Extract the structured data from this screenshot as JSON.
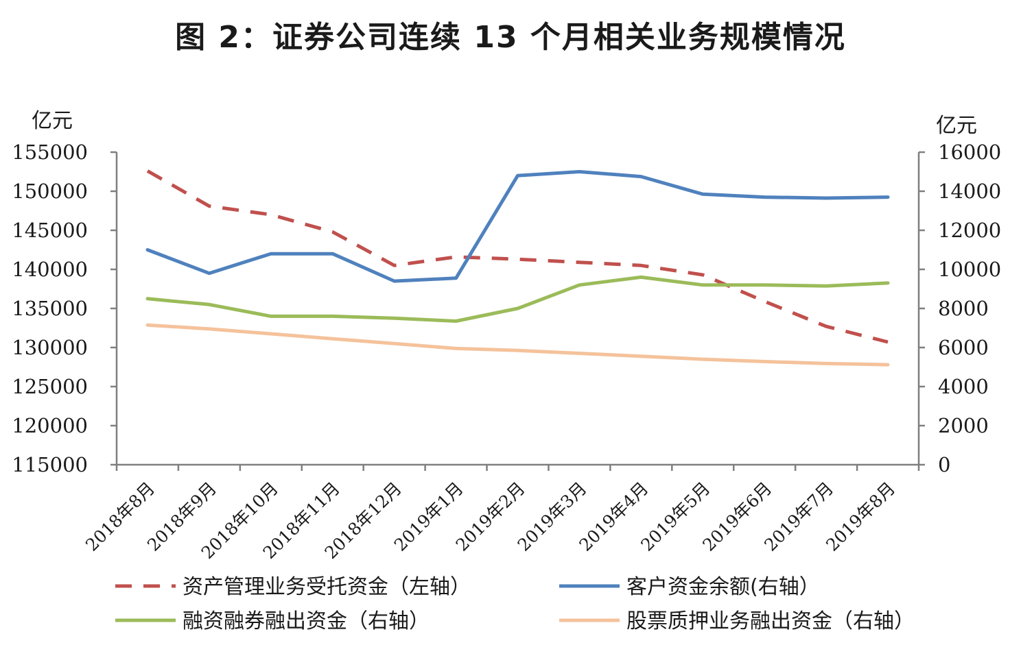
{
  "chart_data": {
    "type": "line",
    "title": "图 2：证券公司连续 13 个月相关业务规模情况",
    "left_axis": {
      "unit": "亿元",
      "ylim": [
        115000,
        155000
      ],
      "ticks": [
        115000,
        120000,
        125000,
        130000,
        135000,
        140000,
        145000,
        150000,
        155000
      ]
    },
    "right_axis": {
      "unit": "亿元",
      "ylim": [
        0,
        16000
      ],
      "ticks": [
        0,
        2000,
        4000,
        6000,
        8000,
        10000,
        12000,
        14000,
        16000
      ]
    },
    "categories": [
      "2018年8月",
      "2018年9月",
      "2018年10月",
      "2018年11月",
      "2018年12月",
      "2019年1月",
      "2019年2月",
      "2019年3月",
      "2019年4月",
      "2019年5月",
      "2019年6月",
      "2019年7月",
      "2019年8月"
    ],
    "grid": false,
    "legend_position": "bottom",
    "series": [
      {
        "name": "资产管理业务受托资金（左轴）",
        "axis": "left",
        "color": "#c0504d",
        "dash": true,
        "values": [
          152600,
          148100,
          147000,
          144800,
          140500,
          141600,
          141300,
          140900,
          140500,
          139300,
          135900,
          132700,
          130700
        ]
      },
      {
        "name": "客户资金余额(右轴）",
        "axis": "right",
        "color": "#4f81bd",
        "dash": false,
        "values": [
          11000,
          9800,
          10800,
          10800,
          9400,
          9550,
          14800,
          15000,
          14750,
          13850,
          13700,
          13650,
          13700
        ]
      },
      {
        "name": "融资融券融出资金（右轴）",
        "axis": "right",
        "color": "#9bbb59",
        "dash": false,
        "values": [
          8500,
          8200,
          7600,
          7600,
          7500,
          7350,
          8000,
          9200,
          9600,
          9200,
          9200,
          9150,
          9300
        ]
      },
      {
        "name": "股票质押业务融出资金（右轴）",
        "axis": "right",
        "color": "#f4c29b",
        "dash": false,
        "values": [
          7150,
          6950,
          6700,
          6450,
          6200,
          5950,
          5850,
          5700,
          5550,
          5400,
          5280,
          5180,
          5120
        ]
      }
    ]
  }
}
